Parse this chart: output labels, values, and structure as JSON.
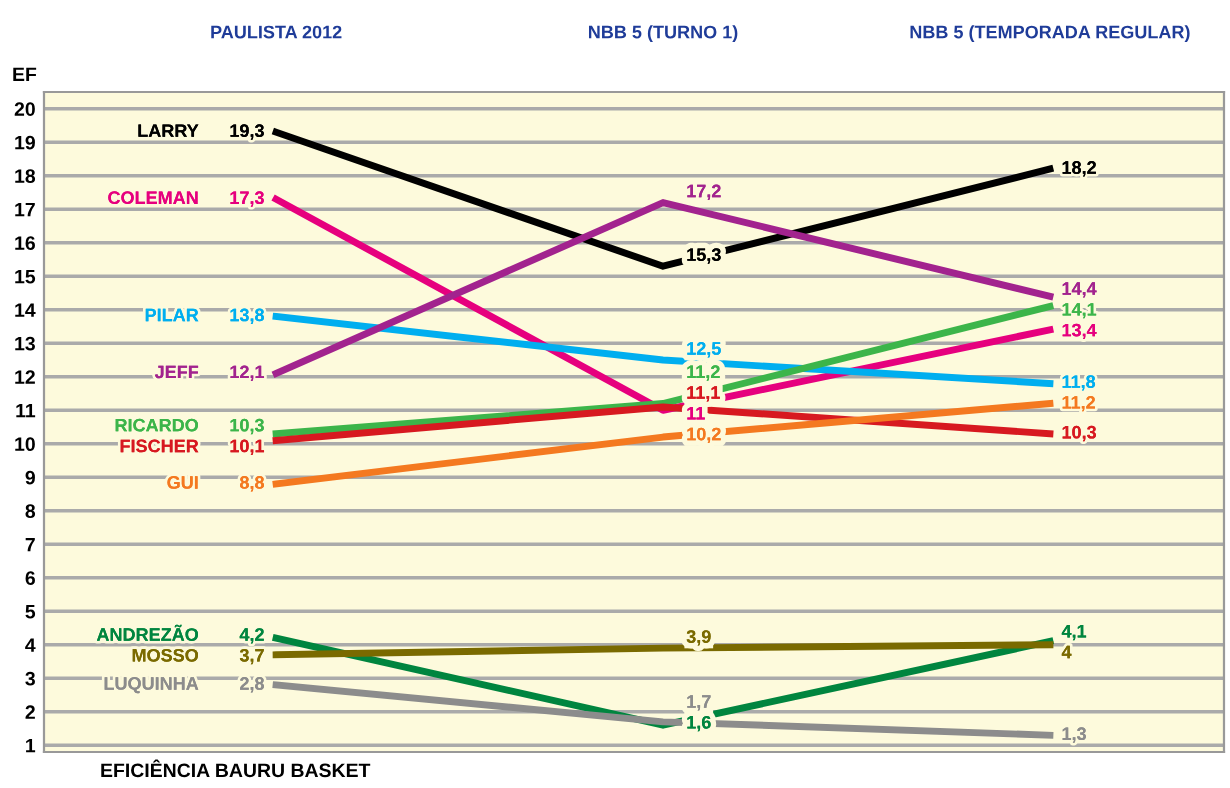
{
  "chart_data": {
    "type": "line",
    "ylabel": "EF",
    "categories": [
      "PAULISTA 2012",
      "NBB 5 (TURNO 1)",
      "NBB 5 (TEMPORADA REGULAR)"
    ],
    "ylim": [
      0.8,
      20.5
    ],
    "yticks": [
      1,
      2,
      3,
      4,
      5,
      6,
      7,
      8,
      9,
      10,
      11,
      12,
      13,
      14,
      15,
      16,
      17,
      18,
      19,
      20
    ],
    "grid": "y",
    "legend": false,
    "marker": "none",
    "line_style": "solid",
    "series": [
      {
        "name": "LARRY",
        "color": "#000000",
        "values": [
          19.3,
          15.3,
          18.2
        ],
        "value_labels": [
          "19,3",
          "15,3",
          "18,2"
        ]
      },
      {
        "name": "COLEMAN",
        "color": "#e6007e",
        "values": [
          17.3,
          11,
          13.4
        ],
        "value_labels": [
          "17,3",
          "11",
          "13,4"
        ]
      },
      {
        "name": "PILAR",
        "color": "#00aeef",
        "values": [
          13.8,
          12.5,
          11.8
        ],
        "value_labels": [
          "13,8",
          "12,5",
          "11,8"
        ]
      },
      {
        "name": "JEFF",
        "color": "#a2238e",
        "values": [
          12.1,
          17.2,
          14.4
        ],
        "value_labels": [
          "12,1",
          "17,2",
          "14,4"
        ]
      },
      {
        "name": "RICARDO",
        "color": "#3cb54a",
        "values": [
          10.3,
          11.2,
          14.1
        ],
        "value_labels": [
          "10,3",
          "11,2",
          "14,1"
        ]
      },
      {
        "name": "FISCHER",
        "color": "#d71920",
        "values": [
          10.1,
          11.1,
          10.3
        ],
        "value_labels": [
          "10,1",
          "11,1",
          "10,3"
        ]
      },
      {
        "name": "GUI",
        "color": "#f47920",
        "values": [
          8.8,
          10.2,
          11.2
        ],
        "value_labels": [
          "8,8",
          "10,2",
          "11,2"
        ]
      },
      {
        "name": "ANDREZÃO",
        "color": "#00853f",
        "values": [
          4.2,
          1.6,
          4.1
        ],
        "value_labels": [
          "4,2",
          "1,6",
          "4,1"
        ]
      },
      {
        "name": "MOSSO",
        "color": "#7a6a00",
        "values": [
          3.7,
          3.9,
          4
        ],
        "value_labels": [
          "3,7",
          "3,9",
          "4"
        ]
      },
      {
        "name": "LUQUINHA",
        "color": "#8c8c8c",
        "values": [
          2.8,
          1.7,
          1.3
        ],
        "value_labels": [
          "2,8",
          "1,7",
          "1,3"
        ]
      }
    ],
    "annotations": [
      "EFICIÊNCIA BAURU BASKET"
    ]
  }
}
